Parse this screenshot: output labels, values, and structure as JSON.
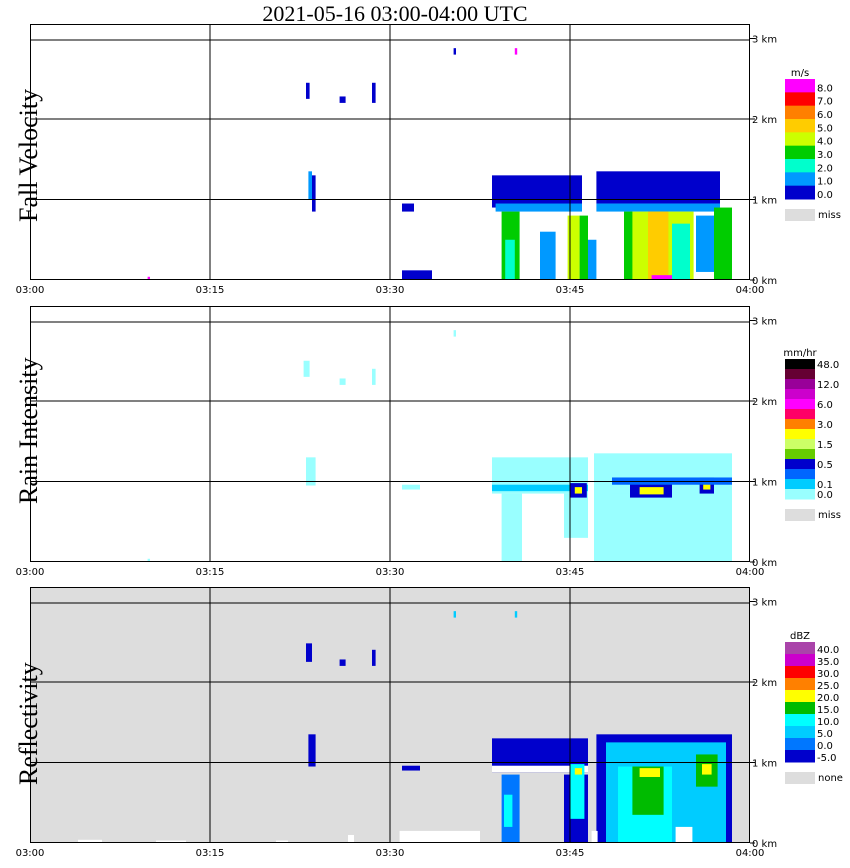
{
  "title": "2021-05-16  03:00-04:00 UTC",
  "x_ticks": [
    "03:00",
    "03:15",
    "03:30",
    "03:45",
    "04:00"
  ],
  "y_ticks": [
    "0 km",
    "1 km",
    "2 km",
    "3 km"
  ],
  "chart_data": [
    {
      "type": "heatmap",
      "ylabel": "Fall Velocity",
      "xlim": [
        "03:00",
        "04:00"
      ],
      "ylim_km": [
        0,
        3.1
      ],
      "legend": {
        "unit": "m/s",
        "levels": [
          "8.0",
          "7.0",
          "6.0",
          "5.0",
          "4.0",
          "3.0",
          "2.0",
          "1.0",
          "0.0"
        ],
        "colors": [
          "#ff00ff",
          "#ff0000",
          "#ff8000",
          "#ffcc00",
          "#ccff00",
          "#00cc00",
          "#00ffcc",
          "#0099ff",
          "#0000cc"
        ],
        "missing_label": "miss",
        "missing_color": "#dddddd"
      },
      "background": "#ffffff",
      "cells": [
        {
          "t": [
            23.2,
            23.5
          ],
          "h": [
            1.0,
            1.35
          ],
          "c": "#0099ff"
        },
        {
          "t": [
            23.5,
            23.8
          ],
          "h": [
            0.85,
            1.3
          ],
          "c": "#0000cc"
        },
        {
          "t": [
            23.0,
            23.3
          ],
          "h": [
            2.25,
            2.45
          ],
          "c": "#0000cc"
        },
        {
          "t": [
            25.8,
            26.3
          ],
          "h": [
            2.2,
            2.28
          ],
          "c": "#0000cc"
        },
        {
          "t": [
            28.5,
            28.8
          ],
          "h": [
            2.2,
            2.45
          ],
          "c": "#0000cc"
        },
        {
          "t": [
            35.3,
            35.5
          ],
          "h": [
            2.8,
            2.88
          ],
          "c": "#0000cc"
        },
        {
          "t": [
            40.4,
            40.6
          ],
          "h": [
            2.8,
            2.88
          ],
          "c": "#ff00ff"
        },
        {
          "t": [
            31.0,
            32.0
          ],
          "h": [
            0.85,
            0.95
          ],
          "c": "#0000cc"
        },
        {
          "t": [
            31.0,
            33.5
          ],
          "h": [
            0.0,
            0.12
          ],
          "c": "#0000cc"
        },
        {
          "t": [
            38.5,
            46.0
          ],
          "h": [
            0.9,
            1.3
          ],
          "c": "#0000cc"
        },
        {
          "t": [
            38.8,
            46.0
          ],
          "h": [
            0.85,
            0.95
          ],
          "c": "#0099ff"
        },
        {
          "t": [
            39.3,
            40.8
          ],
          "h": [
            0.0,
            0.85
          ],
          "c": "#00cc00"
        },
        {
          "t": [
            39.6,
            40.4
          ],
          "h": [
            0.0,
            0.5
          ],
          "c": "#00ffcc"
        },
        {
          "t": [
            42.5,
            43.8
          ],
          "h": [
            0.0,
            0.6
          ],
          "c": "#0099ff"
        },
        {
          "t": [
            44.8,
            45.8
          ],
          "h": [
            0.0,
            0.8
          ],
          "c": "#ccff00"
        },
        {
          "t": [
            45.8,
            46.5
          ],
          "h": [
            0.0,
            0.8
          ],
          "c": "#00cc00"
        },
        {
          "t": [
            46.5,
            47.2
          ],
          "h": [
            0.0,
            0.5
          ],
          "c": "#0099ff"
        },
        {
          "t": [
            47.2,
            57.5
          ],
          "h": [
            0.95,
            1.35
          ],
          "c": "#0000cc"
        },
        {
          "t": [
            47.2,
            57.5
          ],
          "h": [
            0.85,
            0.95
          ],
          "c": "#0099ff"
        },
        {
          "t": [
            50.0,
            55.3
          ],
          "h": [
            0.0,
            0.85
          ],
          "c": "#ccff00"
        },
        {
          "t": [
            51.5,
            53.2
          ],
          "h": [
            0.0,
            0.85
          ],
          "c": "#ffcc00"
        },
        {
          "t": [
            49.5,
            50.2
          ],
          "h": [
            0.0,
            0.85
          ],
          "c": "#00cc00"
        },
        {
          "t": [
            53.5,
            55.0
          ],
          "h": [
            0.0,
            0.7
          ],
          "c": "#00ffcc"
        },
        {
          "t": [
            55.5,
            57.0
          ],
          "h": [
            0.1,
            0.8
          ],
          "c": "#0099ff"
        },
        {
          "t": [
            57.0,
            58.5
          ],
          "h": [
            0.0,
            0.9
          ],
          "c": "#00cc00"
        },
        {
          "t": [
            51.8,
            53.5
          ],
          "h": [
            0.0,
            0.06
          ],
          "c": "#ff00ff"
        },
        {
          "t": [
            9.8,
            10.0
          ],
          "h": [
            0.0,
            0.04
          ],
          "c": "#ff00ff"
        }
      ]
    },
    {
      "type": "heatmap",
      "ylabel": "Rain Intensity",
      "xlim": [
        "03:00",
        "04:00"
      ],
      "ylim_km": [
        0,
        3.1
      ],
      "legend": {
        "unit": "mm/hr",
        "levels": [
          "48.0",
          "",
          "12.0",
          "",
          "6.0",
          "",
          "3.0",
          "",
          "1.5",
          "",
          "0.5",
          "",
          "0.1",
          "0.0"
        ],
        "colors": [
          "#000000",
          "#660033",
          "#990099",
          "#cc00cc",
          "#ff00ff",
          "#ff0066",
          "#ff8000",
          "#ffff00",
          "#ccff66",
          "#66cc00",
          "#0000cc",
          "#0066ff",
          "#00ccff",
          "#99ffff"
        ],
        "missing_label": "miss",
        "missing_color": "#dddddd"
      },
      "background": "#ffffff",
      "cells": [
        {
          "t": [
            23.0,
            23.8
          ],
          "h": [
            0.95,
            1.3
          ],
          "c": "#99ffff"
        },
        {
          "t": [
            22.8,
            23.3
          ],
          "h": [
            2.3,
            2.5
          ],
          "c": "#99ffff"
        },
        {
          "t": [
            25.8,
            26.3
          ],
          "h": [
            2.2,
            2.28
          ],
          "c": "#99ffff"
        },
        {
          "t": [
            28.5,
            28.8
          ],
          "h": [
            2.2,
            2.4
          ],
          "c": "#99ffff"
        },
        {
          "t": [
            35.3,
            35.5
          ],
          "h": [
            2.8,
            2.88
          ],
          "c": "#99ffff"
        },
        {
          "t": [
            31.0,
            32.5
          ],
          "h": [
            0.9,
            0.96
          ],
          "c": "#99ffff"
        },
        {
          "t": [
            38.5,
            46.5
          ],
          "h": [
            0.85,
            1.3
          ],
          "c": "#99ffff"
        },
        {
          "t": [
            38.5,
            46.5
          ],
          "h": [
            0.88,
            0.96
          ],
          "c": "#00ccff"
        },
        {
          "t": [
            39.3,
            41.0
          ],
          "h": [
            0.0,
            0.85
          ],
          "c": "#99ffff"
        },
        {
          "t": [
            44.5,
            46.5
          ],
          "h": [
            0.3,
            0.85
          ],
          "c": "#99ffff"
        },
        {
          "t": [
            47.0,
            58.5
          ],
          "h": [
            0.0,
            1.35
          ],
          "c": "#99ffff"
        },
        {
          "t": [
            48.5,
            53.5
          ],
          "h": [
            0.0,
            0.85
          ],
          "c": "#99ffff"
        },
        {
          "t": [
            45.0,
            46.4
          ],
          "h": [
            0.8,
            0.98
          ],
          "c": "#0000cc"
        },
        {
          "t": [
            45.4,
            46.0
          ],
          "h": [
            0.85,
            0.93
          ],
          "c": "#ffff00"
        },
        {
          "t": [
            50.0,
            53.5
          ],
          "h": [
            0.8,
            1.0
          ],
          "c": "#0000cc"
        },
        {
          "t": [
            50.8,
            52.8
          ],
          "h": [
            0.84,
            0.93
          ],
          "c": "#ffff00"
        },
        {
          "t": [
            55.8,
            57.0
          ],
          "h": [
            0.85,
            1.05
          ],
          "c": "#0000cc"
        },
        {
          "t": [
            56.1,
            56.7
          ],
          "h": [
            0.9,
            0.98
          ],
          "c": "#ffff00"
        },
        {
          "t": [
            48.5,
            58.5
          ],
          "h": [
            0.96,
            1.05
          ],
          "c": "#0066ff"
        },
        {
          "t": [
            9.8,
            10.0
          ],
          "h": [
            0.0,
            0.04
          ],
          "c": "#99ffff"
        }
      ]
    },
    {
      "type": "heatmap",
      "ylabel": "Reflectivity",
      "xlim": [
        "03:00",
        "04:00"
      ],
      "ylim_km": [
        0,
        3.1
      ],
      "legend": {
        "unit": "dBZ",
        "levels": [
          "40.0",
          "35.0",
          "30.0",
          "25.0",
          "20.0",
          "15.0",
          "10.0",
          "5.0",
          "0.0",
          "-5.0"
        ],
        "colors": [
          "#aa44aa",
          "#cc00cc",
          "#ff0000",
          "#ff8000",
          "#ffff00",
          "#00bb00",
          "#00ffff",
          "#00ccff",
          "#0077ff",
          "#0000cc"
        ],
        "missing_label": "none",
        "missing_color": "#dddddd"
      },
      "background": "#dddddd",
      "cells": [
        {
          "t": [
            23.2,
            23.8
          ],
          "h": [
            0.95,
            1.35
          ],
          "c": "#0000cc"
        },
        {
          "t": [
            23.0,
            23.5
          ],
          "h": [
            2.25,
            2.48
          ],
          "c": "#0000cc"
        },
        {
          "t": [
            25.8,
            26.3
          ],
          "h": [
            2.2,
            2.28
          ],
          "c": "#0000cc"
        },
        {
          "t": [
            28.5,
            28.8
          ],
          "h": [
            2.2,
            2.4
          ],
          "c": "#0000cc"
        },
        {
          "t": [
            35.3,
            35.5
          ],
          "h": [
            2.8,
            2.88
          ],
          "c": "#00ccff"
        },
        {
          "t": [
            40.4,
            40.6
          ],
          "h": [
            2.8,
            2.88
          ],
          "c": "#00ccff"
        },
        {
          "t": [
            31.0,
            32.5
          ],
          "h": [
            0.9,
            0.96
          ],
          "c": "#0000cc"
        },
        {
          "t": [
            30.8,
            37.5
          ],
          "h": [
            0.0,
            0.15
          ],
          "c": "#ffffff"
        },
        {
          "t": [
            38.5,
            46.5
          ],
          "h": [
            0.88,
            1.3
          ],
          "c": "#0000cc"
        },
        {
          "t": [
            38.5,
            46.5
          ],
          "h": [
            0.88,
            0.96
          ],
          "c": "#ffffff"
        },
        {
          "t": [
            39.3,
            40.8
          ],
          "h": [
            0.0,
            0.85
          ],
          "c": "#0077ff"
        },
        {
          "t": [
            39.5,
            40.2
          ],
          "h": [
            0.2,
            0.6
          ],
          "c": "#00ffff"
        },
        {
          "t": [
            44.5,
            46.5
          ],
          "h": [
            0.0,
            0.85
          ],
          "c": "#0000cc"
        },
        {
          "t": [
            45.0,
            46.2
          ],
          "h": [
            0.3,
            0.98
          ],
          "c": "#00ffff"
        },
        {
          "t": [
            45.4,
            46.0
          ],
          "h": [
            0.85,
            0.93
          ],
          "c": "#ffff00"
        },
        {
          "t": [
            47.2,
            58.5
          ],
          "h": [
            0.0,
            1.35
          ],
          "c": "#0000cc"
        },
        {
          "t": [
            48.0,
            58.0
          ],
          "h": [
            0.0,
            1.25
          ],
          "c": "#00ccff"
        },
        {
          "t": [
            49.0,
            53.5
          ],
          "h": [
            0.0,
            0.95
          ],
          "c": "#00ffff"
        },
        {
          "t": [
            50.2,
            52.8
          ],
          "h": [
            0.35,
            0.95
          ],
          "c": "#00bb00"
        },
        {
          "t": [
            50.8,
            52.5
          ],
          "h": [
            0.82,
            0.93
          ],
          "c": "#ffff00"
        },
        {
          "t": [
            55.5,
            57.3
          ],
          "h": [
            0.7,
            1.1
          ],
          "c": "#00bb00"
        },
        {
          "t": [
            56.0,
            56.8
          ],
          "h": [
            0.85,
            0.98
          ],
          "c": "#ffff00"
        },
        {
          "t": [
            53.8,
            55.2
          ],
          "h": [
            0.0,
            0.2
          ],
          "c": "#ffffff"
        },
        {
          "t": [
            46.8,
            47.3
          ],
          "h": [
            0.0,
            0.15
          ],
          "c": "#ffffff"
        },
        {
          "t": [
            4.0,
            6.0
          ],
          "h": [
            0.0,
            0.04
          ],
          "c": "#ffffff"
        },
        {
          "t": [
            10.5,
            13.0
          ],
          "h": [
            0.0,
            0.03
          ],
          "c": "#ffffff"
        },
        {
          "t": [
            20.5,
            21.5
          ],
          "h": [
            0.0,
            0.03
          ],
          "c": "#ffffff"
        },
        {
          "t": [
            26.5,
            27.0
          ],
          "h": [
            0.0,
            0.1
          ],
          "c": "#ffffff"
        }
      ]
    }
  ]
}
